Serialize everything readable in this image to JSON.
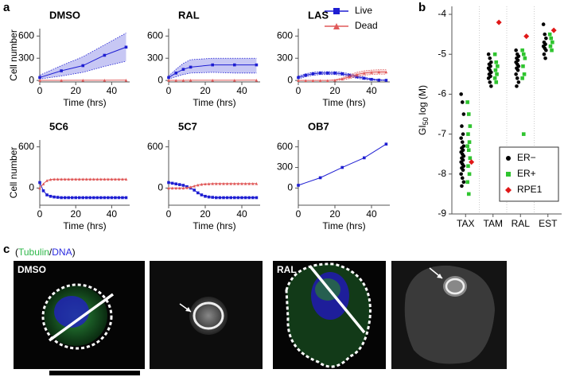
{
  "panel_labels": [
    "a",
    "b",
    "c"
  ],
  "chart_data": [
    {
      "type": "line",
      "title": "DMSO",
      "xlabel": "Time (hrs)",
      "ylabel": "Cell number",
      "x": [
        0,
        12,
        24,
        36,
        48
      ],
      "xlim": [
        0,
        50
      ],
      "xticks": [
        0,
        20,
        40
      ],
      "ylim": [
        -20,
        700
      ],
      "yticks": [
        0,
        300,
        600
      ],
      "series": [
        {
          "color": "#1e1ed2",
          "marker": "square",
          "values": [
            40,
            130,
            200,
            340,
            450
          ],
          "lower": [
            20,
            60,
            110,
            190,
            260
          ],
          "upper": [
            70,
            200,
            320,
            480,
            640
          ]
        },
        {
          "color": "#e05a5a",
          "marker": "triangle",
          "values": [
            2,
            2,
            3,
            3,
            4
          ]
        }
      ]
    },
    {
      "type": "line",
      "title": "RAL",
      "xlabel": "Time (hrs)",
      "x": [
        0,
        4,
        8,
        12,
        24,
        36,
        48
      ],
      "xlim": [
        0,
        50
      ],
      "xticks": [
        0,
        20,
        40
      ],
      "ylim": [
        -20,
        700
      ],
      "yticks": [
        0,
        300,
        600
      ],
      "series": [
        {
          "color": "#1e1ed2",
          "marker": "square",
          "values": [
            40,
            100,
            150,
            180,
            210,
            210,
            210
          ],
          "lower": [
            20,
            50,
            80,
            100,
            110,
            100,
            100
          ],
          "upper": [
            60,
            150,
            230,
            280,
            300,
            300,
            300
          ]
        },
        {
          "color": "#e05a5a",
          "marker": "triangle",
          "values": [
            2,
            2,
            2,
            3,
            3,
            3,
            4
          ]
        }
      ]
    },
    {
      "type": "line",
      "title": "LAS",
      "xlabel": "Time (hrs)",
      "legend": "upper right",
      "x": [
        0,
        4,
        8,
        12,
        16,
        20,
        24,
        28,
        32,
        36,
        40,
        44,
        48
      ],
      "xlim": [
        0,
        50
      ],
      "xticks": [
        0,
        20,
        40
      ],
      "ylim": [
        -20,
        700
      ],
      "yticks": [
        0,
        300,
        600
      ],
      "series": [
        {
          "name": "Live",
          "color": "#1e1ed2",
          "marker": "square",
          "values": [
            40,
            70,
            90,
            100,
            100,
            100,
            90,
            70,
            50,
            30,
            15,
            5,
            2
          ],
          "lower": [
            20,
            50,
            70,
            80,
            80,
            80,
            70,
            50,
            30,
            15,
            5,
            0,
            0
          ],
          "upper": [
            60,
            90,
            110,
            120,
            120,
            120,
            110,
            90,
            70,
            45,
            25,
            10,
            5
          ]
        },
        {
          "name": "Dead",
          "color": "#e05a5a",
          "marker": "triangle",
          "values": [
            0,
            0,
            0,
            0,
            0,
            5,
            20,
            50,
            80,
            100,
            110,
            115,
            115
          ],
          "lower": [
            0,
            0,
            0,
            0,
            0,
            0,
            5,
            25,
            50,
            70,
            80,
            85,
            85
          ],
          "upper": [
            0,
            0,
            0,
            0,
            0,
            10,
            35,
            75,
            110,
            130,
            140,
            145,
            145
          ]
        }
      ]
    },
    {
      "type": "line",
      "title": "5C6",
      "xlabel": "Time (hrs)",
      "ylabel": "Cell number",
      "x": [
        0,
        2,
        4,
        6,
        8,
        10,
        12,
        14,
        16,
        18,
        20,
        22,
        24,
        26,
        28,
        30,
        32,
        34,
        36,
        38,
        40,
        42,
        44,
        46,
        48
      ],
      "xlim": [
        0,
        50
      ],
      "xticks": [
        0,
        20,
        40
      ],
      "ylim": [
        -250,
        700
      ],
      "yticks": [
        0,
        600
      ],
      "series": [
        {
          "color": "#1e1ed2",
          "marker": "square",
          "values": [
            80,
            -40,
            -100,
            -120,
            -130,
            -135,
            -140,
            -140,
            -140,
            -140,
            -140,
            -140,
            -140,
            -140,
            -140,
            -140,
            -140,
            -140,
            -140,
            -140,
            -140,
            -140,
            -140,
            -140,
            -140
          ]
        },
        {
          "color": "#e05a5a",
          "marker": "triangle",
          "values": [
            0,
            60,
            110,
            125,
            130,
            130,
            130,
            130,
            130,
            130,
            130,
            130,
            130,
            130,
            130,
            130,
            130,
            130,
            130,
            130,
            130,
            130,
            130,
            130,
            130
          ]
        }
      ]
    },
    {
      "type": "line",
      "title": "5C7",
      "xlabel": "Time (hrs)",
      "x": [
        0,
        2,
        4,
        6,
        8,
        10,
        12,
        14,
        16,
        18,
        20,
        22,
        24,
        26,
        28,
        30,
        32,
        34,
        36,
        38,
        40,
        42,
        44,
        46,
        48
      ],
      "xlim": [
        0,
        50
      ],
      "xticks": [
        0,
        20,
        40
      ],
      "ylim": [
        -250,
        700
      ],
      "yticks": [
        0,
        600
      ],
      "series": [
        {
          "color": "#1e1ed2",
          "marker": "square",
          "values": [
            80,
            70,
            60,
            50,
            40,
            20,
            0,
            -30,
            -70,
            -100,
            -120,
            -130,
            -135,
            -140,
            -140,
            -140,
            -140,
            -140,
            -140,
            -140,
            -140,
            -140,
            -140,
            -140,
            -140
          ]
        },
        {
          "color": "#e05a5a",
          "marker": "triangle",
          "values": [
            0,
            0,
            0,
            0,
            0,
            5,
            15,
            30,
            45,
            55,
            60,
            62,
            65,
            65,
            65,
            65,
            65,
            65,
            65,
            65,
            65,
            65,
            65,
            65,
            65
          ]
        }
      ]
    },
    {
      "type": "line",
      "title": "OB7",
      "xlabel": "Time (hrs)",
      "x": [
        0,
        12,
        24,
        36,
        48
      ],
      "xlim": [
        0,
        50
      ],
      "xticks": [
        0,
        20,
        40
      ],
      "ylim": [
        -250,
        700
      ],
      "yticks": [
        0,
        300,
        600
      ],
      "series": [
        {
          "color": "#1e1ed2",
          "marker": "square",
          "values": [
            40,
            150,
            300,
            440,
            640
          ]
        }
      ]
    },
    {
      "type": "scatter",
      "ylabel": [
        "GI",
        "50",
        "log (M)"
      ],
      "legend": "lower right",
      "categories": [
        "TAX",
        "TAM",
        "RAL",
        "EST"
      ],
      "ylim": [
        -9,
        -3.8
      ],
      "yticks": [
        -9,
        -8,
        -7,
        -6,
        -5,
        -4
      ],
      "series": [
        {
          "name": "ER−",
          "color": "#000000",
          "marker": "circle",
          "values": [
            [
              -6.0,
              -6.2,
              -6.5,
              -6.8,
              -7.0,
              -7.1,
              -7.2,
              -7.3,
              -7.35,
              -7.4,
              -7.45,
              -7.5,
              -7.55,
              -7.6,
              -7.65,
              -7.7,
              -7.75,
              -7.8,
              -7.85,
              -7.9,
              -8.0,
              -8.1,
              -8.2,
              -8.3
            ],
            [
              -5.0,
              -5.1,
              -5.2,
              -5.25,
              -5.3,
              -5.35,
              -5.4,
              -5.45,
              -5.5,
              -5.55,
              -5.6,
              -5.7,
              -5.8
            ],
            [
              -4.9,
              -5.0,
              -5.05,
              -5.1,
              -5.15,
              -5.2,
              -5.25,
              -5.3,
              -5.35,
              -5.4,
              -5.5,
              -5.6,
              -5.7,
              -5.8
            ],
            [
              -4.25,
              -4.5,
              -4.6,
              -4.7,
              -4.75,
              -4.8,
              -4.85,
              -4.9,
              -5.0,
              -5.1
            ]
          ]
        },
        {
          "name": "ER+",
          "color": "#2fc42f",
          "marker": "square",
          "values": [
            [
              -6.2,
              -6.5,
              -6.8,
              -7.0,
              -7.2,
              -7.3,
              -7.4,
              -7.6,
              -7.8,
              -8.0,
              -8.2,
              -8.5
            ],
            [
              -5.0,
              -5.2,
              -5.3,
              -5.4,
              -5.5,
              -5.6,
              -5.7
            ],
            [
              -4.9,
              -5.0,
              -5.1,
              -5.3,
              -5.5,
              -5.6,
              -7.0
            ],
            [
              -4.5,
              -4.6,
              -4.7,
              -4.8,
              -4.9
            ]
          ]
        },
        {
          "name": "RPE1",
          "color": "#e01818",
          "marker": "diamond",
          "values": [
            [
              -7.7
            ],
            [
              -4.2
            ],
            [
              -4.55
            ],
            [
              -4.4
            ]
          ]
        }
      ]
    }
  ],
  "micrographs": {
    "caption": [
      "(",
      "Tubulin",
      "/",
      "DNA",
      ")"
    ],
    "caption_colors": [
      "#000000",
      "#2fb84a",
      "#000000",
      "#2a2ae0",
      "#000000"
    ],
    "labels": [
      "DMSO",
      "RAL"
    ]
  }
}
